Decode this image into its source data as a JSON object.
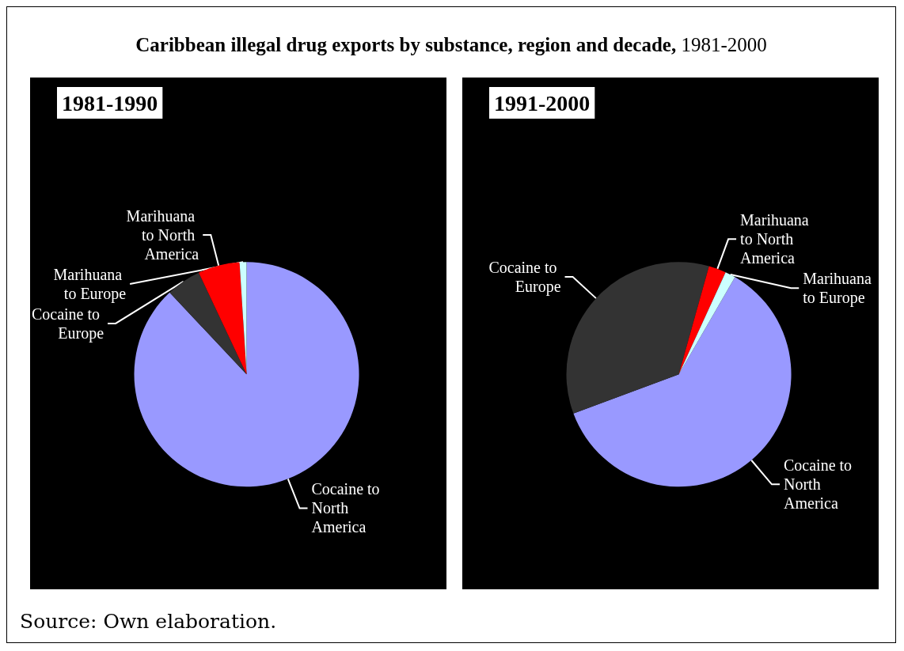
{
  "chart_data": [
    {
      "type": "pie",
      "title": "Caribbean illegal drug exports by substance, region and decade, 1981-2000",
      "subtitle": "1981-1990",
      "categories": [
        "Cocaine to North America",
        "Cocaine to Europe",
        "Marihuana to North America",
        "Marihuana to Europe"
      ],
      "values": [
        88,
        5,
        6,
        1
      ],
      "colors": [
        "#9999ff",
        "#333333",
        "#ff0000",
        "#ccffff"
      ],
      "legend": false
    },
    {
      "type": "pie",
      "subtitle": "1991-2000",
      "categories": [
        "Cocaine to North America",
        "Cocaine to Europe",
        "Marihuana to North America",
        "Marihuana to Europe"
      ],
      "values": [
        61,
        35,
        2.5,
        1.5
      ],
      "colors": [
        "#9999ff",
        "#333333",
        "#ff0000",
        "#ccffff"
      ],
      "legend": false,
      "annotations": [
        "Source: Own elaboration."
      ]
    }
  ]
}
